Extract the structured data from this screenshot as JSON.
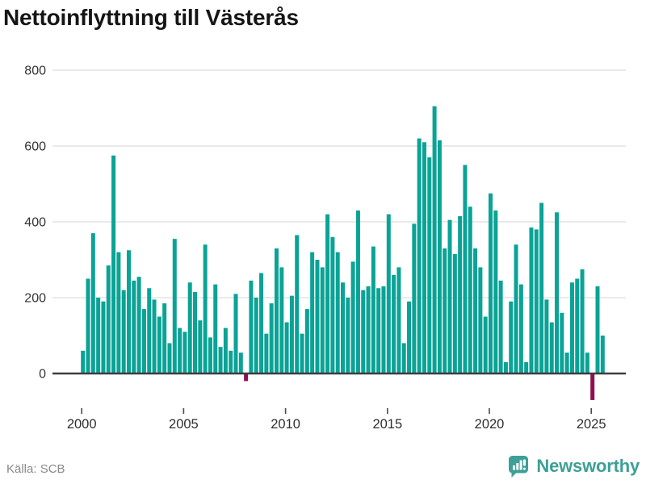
{
  "title": "Nettoinflyttning till Västerås",
  "source": "Källa: SCB",
  "brand": {
    "name": "Newsworthy"
  },
  "colors": {
    "bar": "#0aa396",
    "negative": "#8e1050",
    "grid": "#e4e4e4",
    "axis": "#3d3d3d",
    "tick": "#4a4a4a",
    "axis_text": "#333333",
    "title": "#151515",
    "source": "#8a8a8a",
    "brand": "#3da096"
  },
  "chart_data": {
    "type": "bar",
    "title": "Nettoinflyttning till Västerås",
    "xlabel": "",
    "ylabel": "",
    "frequency": "quarterly",
    "ylim": [
      -100,
      800
    ],
    "yticks": [
      0,
      200,
      400,
      600,
      800
    ],
    "x_label_years": [
      2000,
      2005,
      2010,
      2015,
      2020,
      2025
    ],
    "grid": true,
    "legend": null,
    "categories": [
      "2000Q1",
      "2000Q2",
      "2000Q3",
      "2000Q4",
      "2001Q1",
      "2001Q2",
      "2001Q3",
      "2001Q4",
      "2002Q1",
      "2002Q2",
      "2002Q3",
      "2002Q4",
      "2003Q1",
      "2003Q2",
      "2003Q3",
      "2003Q4",
      "2004Q1",
      "2004Q2",
      "2004Q3",
      "2004Q4",
      "2005Q1",
      "2005Q2",
      "2005Q3",
      "2005Q4",
      "2006Q1",
      "2006Q2",
      "2006Q3",
      "2006Q4",
      "2007Q1",
      "2007Q2",
      "2007Q3",
      "2007Q4",
      "2008Q1",
      "2008Q2",
      "2008Q3",
      "2008Q4",
      "2009Q1",
      "2009Q2",
      "2009Q3",
      "2009Q4",
      "2010Q1",
      "2010Q2",
      "2010Q3",
      "2010Q4",
      "2011Q1",
      "2011Q2",
      "2011Q3",
      "2011Q4",
      "2012Q1",
      "2012Q2",
      "2012Q3",
      "2012Q4",
      "2013Q1",
      "2013Q2",
      "2013Q3",
      "2013Q4",
      "2014Q1",
      "2014Q2",
      "2014Q3",
      "2014Q4",
      "2015Q1",
      "2015Q2",
      "2015Q3",
      "2015Q4",
      "2016Q1",
      "2016Q2",
      "2016Q3",
      "2016Q4",
      "2017Q1",
      "2017Q2",
      "2017Q3",
      "2017Q4",
      "2018Q1",
      "2018Q2",
      "2018Q3",
      "2018Q4",
      "2019Q1",
      "2019Q2",
      "2019Q3",
      "2019Q4",
      "2020Q1",
      "2020Q2",
      "2020Q3",
      "2020Q4",
      "2021Q1",
      "2021Q2",
      "2021Q3",
      "2021Q4",
      "2022Q1",
      "2022Q2",
      "2022Q3",
      "2022Q4",
      "2023Q1",
      "2023Q2",
      "2023Q3",
      "2023Q4",
      "2024Q1",
      "2024Q2",
      "2024Q3",
      "2024Q4",
      "2025Q1",
      "2025Q2",
      "2025Q3"
    ],
    "values": [
      60,
      250,
      370,
      200,
      190,
      285,
      575,
      320,
      220,
      325,
      245,
      255,
      170,
      225,
      195,
      150,
      185,
      80,
      355,
      120,
      110,
      240,
      215,
      140,
      340,
      95,
      235,
      70,
      120,
      60,
      210,
      55,
      -20,
      245,
      200,
      265,
      105,
      185,
      330,
      280,
      135,
      205,
      365,
      105,
      170,
      320,
      300,
      280,
      420,
      360,
      320,
      240,
      200,
      295,
      430,
      220,
      230,
      335,
      225,
      230,
      420,
      260,
      280,
      80,
      190,
      395,
      620,
      610,
      570,
      705,
      615,
      330,
      405,
      315,
      415,
      550,
      440,
      330,
      280,
      150,
      475,
      430,
      245,
      30,
      190,
      340,
      235,
      30,
      385,
      380,
      450,
      195,
      135,
      425,
      160,
      55,
      240,
      250,
      275,
      55,
      -70,
      230,
      100
    ]
  }
}
